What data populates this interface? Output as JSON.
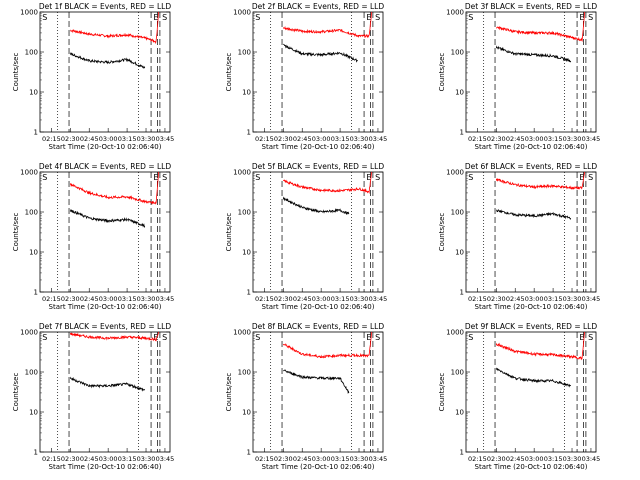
{
  "chart_data": [
    {
      "type": "line",
      "title": "Det 1f BLACK = Events, RED = LLD",
      "xlabel": "Start Time (20-Oct-10 02:06:40)",
      "ylabel": "Counts/sec",
      "ylim": [
        1,
        1000
      ],
      "x_ticks": [
        "02:15",
        "02:30",
        "02:45",
        "03:00",
        "03:15",
        "03:30",
        "03:45"
      ],
      "y_ticks": [
        "1",
        "10",
        "100",
        "1000"
      ],
      "markers": [
        "S",
        "E",
        "S"
      ],
      "series": [
        {
          "name": "LLD",
          "color": "#ff0000",
          "times": [
            "02:30",
            "02:45",
            "03:00",
            "03:15",
            "03:30",
            "03:38",
            "03:40"
          ],
          "values": [
            350,
            280,
            250,
            270,
            220,
            180,
            1000
          ]
        },
        {
          "name": "Events",
          "color": "#000000",
          "times": [
            "02:30",
            "02:45",
            "03:00",
            "03:15",
            "03:29"
          ],
          "values": [
            90,
            60,
            55,
            65,
            40
          ]
        }
      ]
    },
    {
      "type": "line",
      "title": "Det 2f BLACK = Events, RED = LLD",
      "xlabel": "Start Time (20-Oct-10 02:06:40)",
      "ylabel": "Counts/sec",
      "ylim": [
        1,
        1000
      ],
      "x_ticks": [
        "02:15",
        "02:30",
        "02:45",
        "03:00",
        "03:15",
        "03:30",
        "03:45"
      ],
      "y_ticks": [
        "1",
        "10",
        "100",
        "1000"
      ],
      "markers": [
        "S",
        "E",
        "S"
      ],
      "series": [
        {
          "name": "LLD",
          "color": "#ff0000",
          "times": [
            "02:30",
            "02:45",
            "03:00",
            "03:15",
            "03:30",
            "03:38",
            "03:40"
          ],
          "values": [
            400,
            330,
            320,
            350,
            250,
            250,
            1000
          ]
        },
        {
          "name": "Events",
          "color": "#000000",
          "times": [
            "02:30",
            "02:45",
            "03:00",
            "03:15",
            "03:29"
          ],
          "values": [
            150,
            90,
            85,
            95,
            60
          ]
        }
      ]
    },
    {
      "type": "line",
      "title": "Det 3f BLACK = Events, RED = LLD",
      "xlabel": "Start Time (20-Oct-10 02:06:40)",
      "ylabel": "Counts/sec",
      "ylim": [
        1,
        1000
      ],
      "x_ticks": [
        "02:15",
        "02:30",
        "02:45",
        "03:00",
        "03:15",
        "03:30",
        "03:45"
      ],
      "y_ticks": [
        "1",
        "10",
        "100",
        "1000"
      ],
      "markers": [
        "S",
        "E",
        "S"
      ],
      "series": [
        {
          "name": "LLD",
          "color": "#ff0000",
          "times": [
            "02:30",
            "02:45",
            "03:00",
            "03:15",
            "03:30",
            "03:38",
            "03:40"
          ],
          "values": [
            420,
            320,
            300,
            300,
            230,
            200,
            1000
          ]
        },
        {
          "name": "Events",
          "color": "#000000",
          "times": [
            "02:30",
            "02:45",
            "03:00",
            "03:15",
            "03:29"
          ],
          "values": [
            130,
            90,
            85,
            80,
            60
          ]
        }
      ]
    },
    {
      "type": "line",
      "title": "Det 4f BLACK = Events, RED = LLD",
      "xlabel": "Start Time (20-Oct-10 02:06:40)",
      "ylabel": "Counts/sec",
      "ylim": [
        1,
        1000
      ],
      "x_ticks": [
        "02:15",
        "02:30",
        "02:45",
        "03:00",
        "03:15",
        "03:30",
        "03:45"
      ],
      "y_ticks": [
        "1",
        "10",
        "100",
        "1000"
      ],
      "markers": [
        "S",
        "E",
        "S"
      ],
      "series": [
        {
          "name": "LLD",
          "color": "#ff0000",
          "times": [
            "02:30",
            "02:45",
            "03:00",
            "03:15",
            "03:30",
            "03:38",
            "03:40"
          ],
          "values": [
            500,
            300,
            230,
            240,
            180,
            170,
            1000
          ]
        },
        {
          "name": "Events",
          "color": "#000000",
          "times": [
            "02:30",
            "02:45",
            "03:00",
            "03:15",
            "03:29"
          ],
          "values": [
            110,
            70,
            60,
            65,
            45
          ]
        }
      ]
    },
    {
      "type": "line",
      "title": "Det 5f BLACK = Events, RED = LLD",
      "xlabel": "Start Time (20-Oct-10 02:06:40)",
      "ylabel": "Counts/sec",
      "ylim": [
        1,
        1000
      ],
      "x_ticks": [
        "02:15",
        "02:30",
        "02:45",
        "03:00",
        "03:15",
        "03:30",
        "03:45"
      ],
      "y_ticks": [
        "1",
        "10",
        "100",
        "1000"
      ],
      "markers": [
        "S",
        "E",
        "S"
      ],
      "series": [
        {
          "name": "LLD",
          "color": "#ff0000",
          "times": [
            "02:30",
            "02:45",
            "03:00",
            "03:15",
            "03:30",
            "03:38",
            "03:40"
          ],
          "values": [
            600,
            420,
            350,
            340,
            380,
            320,
            1000
          ]
        },
        {
          "name": "Events",
          "color": "#000000",
          "times": [
            "02:30",
            "02:45",
            "03:00",
            "03:15",
            "03:22"
          ],
          "values": [
            220,
            130,
            100,
            110,
            90
          ]
        }
      ]
    },
    {
      "type": "line",
      "title": "Det 6f BLACK = Events, RED = LLD",
      "xlabel": "Start Time (20-Oct-10 02:06:40)",
      "ylabel": "Counts/sec",
      "ylim": [
        1,
        1000
      ],
      "x_ticks": [
        "02:15",
        "02:30",
        "02:45",
        "03:00",
        "03:15",
        "03:30",
        "03:45"
      ],
      "y_ticks": [
        "1",
        "10",
        "100",
        "1000"
      ],
      "markers": [
        "S",
        "E",
        "S"
      ],
      "series": [
        {
          "name": "LLD",
          "color": "#ff0000",
          "times": [
            "02:30",
            "02:45",
            "03:00",
            "03:15",
            "03:30",
            "03:38",
            "03:40"
          ],
          "values": [
            650,
            480,
            420,
            450,
            400,
            400,
            1000
          ]
        },
        {
          "name": "Events",
          "color": "#000000",
          "times": [
            "02:30",
            "02:45",
            "03:00",
            "03:15",
            "03:29"
          ],
          "values": [
            110,
            85,
            80,
            90,
            70
          ]
        }
      ]
    },
    {
      "type": "line",
      "title": "Det 7f BLACK = Events, RED = LLD",
      "xlabel": "Start Time (20-Oct-10 02:06:40)",
      "ylabel": "Counts/sec",
      "ylim": [
        1,
        1000
      ],
      "x_ticks": [
        "02:15",
        "02:30",
        "02:45",
        "03:00",
        "03:15",
        "03:30",
        "03:45"
      ],
      "y_ticks": [
        "1",
        "10",
        "100",
        "1000"
      ],
      "markers": [
        "S",
        "E",
        "S"
      ],
      "series": [
        {
          "name": "LLD",
          "color": "#ff0000",
          "times": [
            "02:30",
            "02:45",
            "03:00",
            "03:15",
            "03:30",
            "03:38",
            "03:40"
          ],
          "values": [
            900,
            750,
            700,
            750,
            700,
            650,
            1000
          ]
        },
        {
          "name": "Events",
          "color": "#000000",
          "times": [
            "02:30",
            "02:45",
            "03:00",
            "03:15",
            "03:29"
          ],
          "values": [
            70,
            45,
            45,
            50,
            35
          ]
        }
      ]
    },
    {
      "type": "line",
      "title": "Det 8f BLACK = Events, RED = LLD",
      "xlabel": "Start Time (20-Oct-10 02:06:40)",
      "ylabel": "Counts/sec",
      "ylim": [
        1,
        1000
      ],
      "x_ticks": [
        "02:15",
        "02:30",
        "02:45",
        "03:00",
        "03:15",
        "03:30",
        "03:45"
      ],
      "y_ticks": [
        "1",
        "10",
        "100",
        "1000"
      ],
      "markers": [
        "S",
        "E",
        "S"
      ],
      "series": [
        {
          "name": "LLD",
          "color": "#ff0000",
          "times": [
            "02:30",
            "02:45",
            "03:00",
            "03:15",
            "03:30",
            "03:38",
            "03:40"
          ],
          "values": [
            500,
            280,
            240,
            260,
            260,
            250,
            1000
          ]
        },
        {
          "name": "Events",
          "color": "#000000",
          "times": [
            "02:30",
            "02:45",
            "03:00",
            "03:15",
            "03:22"
          ],
          "values": [
            110,
            75,
            70,
            70,
            30
          ]
        }
      ]
    },
    {
      "type": "line",
      "title": "Det 9f BLACK = Events, RED = LLD",
      "xlabel": "Start Time (20-Oct-10 02:06:40)",
      "ylabel": "Counts/sec",
      "ylim": [
        1,
        1000
      ],
      "x_ticks": [
        "02:15",
        "02:30",
        "02:45",
        "03:00",
        "03:15",
        "03:30",
        "03:45"
      ],
      "y_ticks": [
        "1",
        "10",
        "100",
        "1000"
      ],
      "markers": [
        "S",
        "E",
        "S"
      ],
      "series": [
        {
          "name": "LLD",
          "color": "#ff0000",
          "times": [
            "02:30",
            "02:45",
            "03:00",
            "03:15",
            "03:30",
            "03:38",
            "03:40"
          ],
          "values": [
            500,
            330,
            280,
            270,
            240,
            220,
            1000
          ]
        },
        {
          "name": "Events",
          "color": "#000000",
          "times": [
            "02:30",
            "02:45",
            "03:00",
            "03:15",
            "03:29"
          ],
          "values": [
            120,
            70,
            60,
            60,
            45
          ]
        }
      ]
    }
  ]
}
